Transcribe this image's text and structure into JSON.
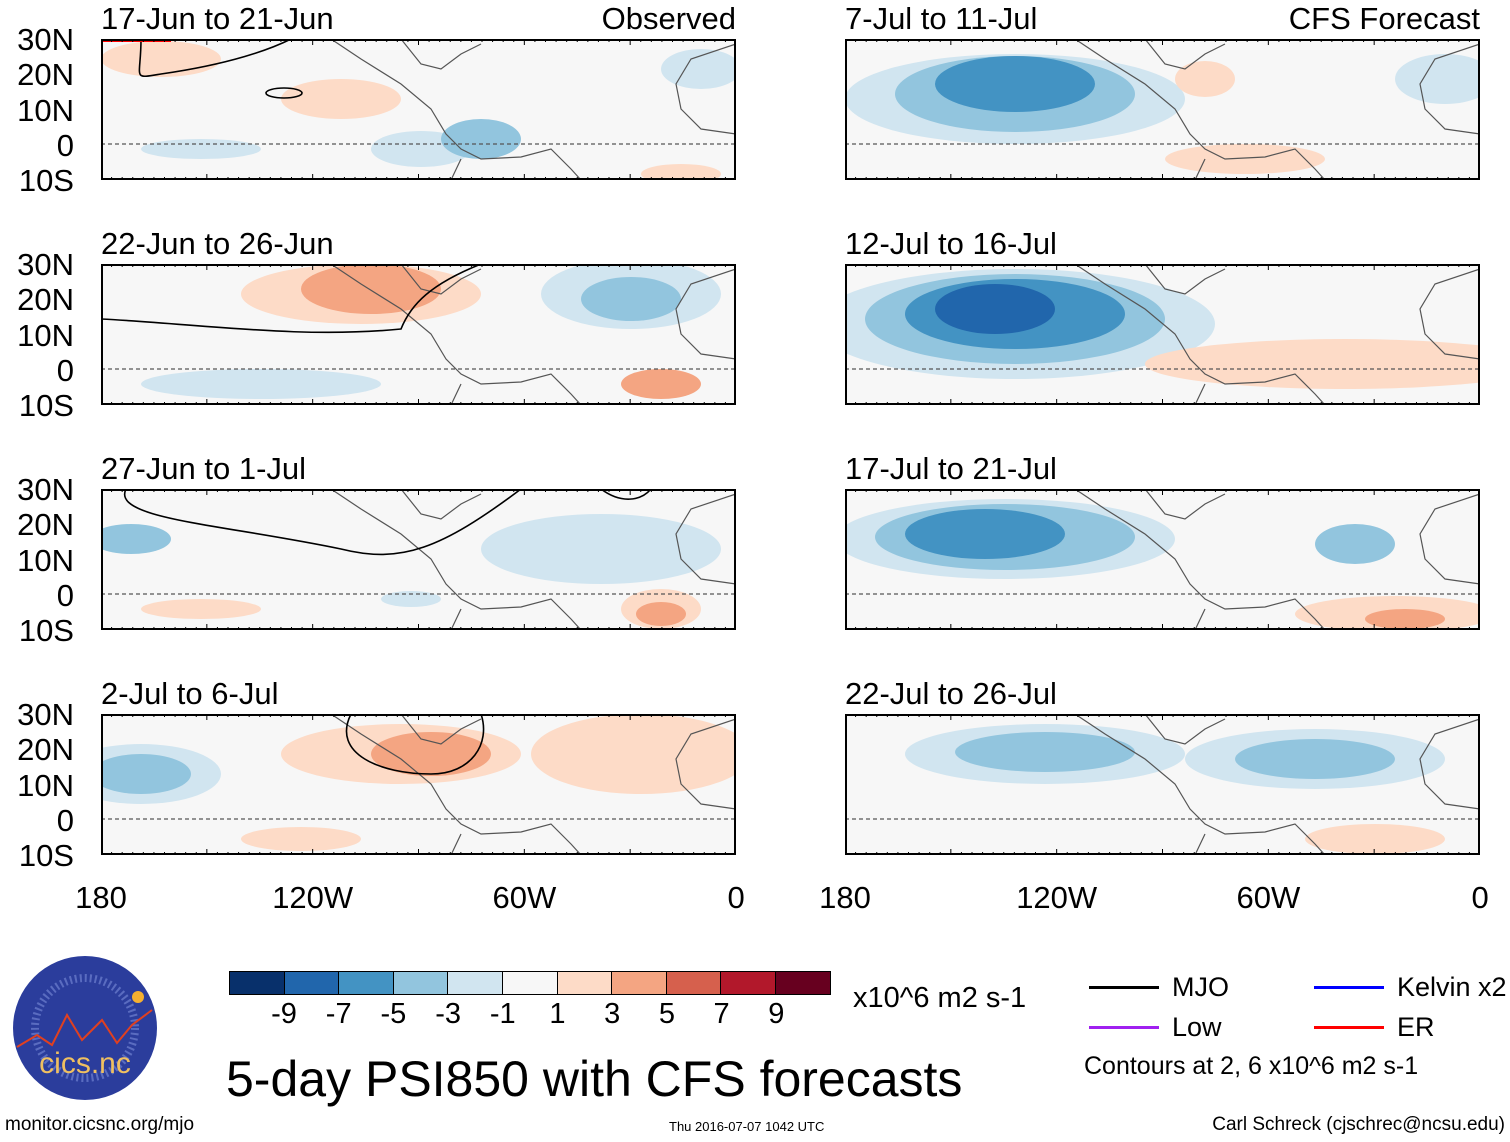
{
  "panels": {
    "observed_label": "Observed",
    "forecast_label": "CFS Forecast",
    "left": [
      "17-Jun to 21-Jun",
      "22-Jun to 26-Jun",
      "27-Jun to 1-Jul",
      "2-Jul to 6-Jul"
    ],
    "right": [
      "7-Jul to 11-Jul",
      "12-Jul to 16-Jul",
      "17-Jul to 21-Jul",
      "22-Jul to 26-Jul"
    ]
  },
  "axes": {
    "lat_labels": [
      "30N",
      "20N",
      "10N",
      "0",
      "10S"
    ],
    "lon_labels": [
      "180",
      "120W",
      "60W",
      "0"
    ]
  },
  "colorbar": {
    "colors": [
      "#08306b",
      "#2166ac",
      "#4393c3",
      "#92c5de",
      "#d1e5f0",
      "#f7f7f7",
      "#fddbc7",
      "#f4a582",
      "#d6604d",
      "#b2182b",
      "#67001f"
    ],
    "labels": [
      "-9",
      "-7",
      "-5",
      "-3",
      "-1",
      "1",
      "3",
      "5",
      "7",
      "9"
    ],
    "units": "x10^6 m2 s-1"
  },
  "legend": {
    "items": [
      {
        "label": "MJO",
        "color": "#000000"
      },
      {
        "label": "Kelvin x2",
        "color": "#0000ff"
      },
      {
        "label": "Low",
        "color": "#a020f0"
      },
      {
        "label": "ER",
        "color": "#ff0000"
      }
    ],
    "contours_note": "Contours at 2, 6 x10^6 m2 s-1"
  },
  "title": "5-day PSI850 with CFS forecasts",
  "logo_text": "cics.nc",
  "logo_ring_text": "Cooperative Institute for Climate and Satellites",
  "footer": {
    "url": "monitor.cicsnc.org/mjo",
    "timestamp": "Thu 2016-07-07 1042 UTC",
    "author": "Carl Schreck (cjschrec@ncsu.edu)"
  }
}
